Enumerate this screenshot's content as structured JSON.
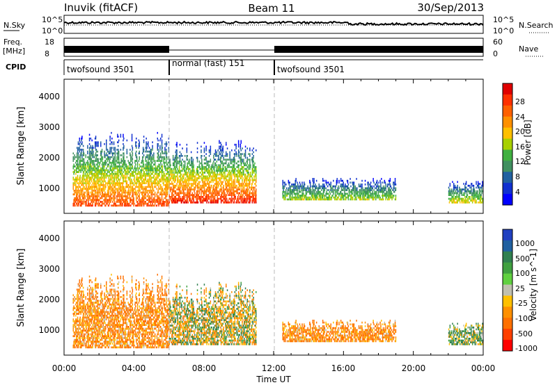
{
  "header": {
    "station": "Inuvik (fitACF)",
    "beam": "Beam 11",
    "date": "30/Sep/2013"
  },
  "noise_panel": {
    "left_label": "N.Sky",
    "right_label": "N.Search",
    "ticks": [
      "10^5",
      "10^0"
    ],
    "right_ticks": [
      "10^5",
      "10^0"
    ]
  },
  "freq_panel": {
    "left_label_1": "Freq.",
    "left_label_2": "[MHz]",
    "ticks": [
      "18",
      "8"
    ],
    "right_label": "Nave",
    "right_ticks": [
      "60",
      "0"
    ]
  },
  "cpid_panel": {
    "label": "CPID",
    "modes": [
      {
        "name": "twofsound 3501",
        "start": 0,
        "end": 6
      },
      {
        "name": "normal (fast) 151",
        "start": 6,
        "end": 12
      },
      {
        "name": "twofsound 3501",
        "start": 12,
        "end": 24
      }
    ]
  },
  "x_axis": {
    "label": "Time UT",
    "ticks": [
      "00:00",
      "04:00",
      "08:00",
      "12:00",
      "16:00",
      "20:00",
      "00:00"
    ],
    "range_hours": [
      0,
      24
    ]
  },
  "power_panel": {
    "ylabel": "Slant Range [km]",
    "yticks": [
      "1000",
      "2000",
      "3000",
      "4000"
    ],
    "cbar_label": "Power [dB]",
    "cbar_ticks": [
      "28",
      "24",
      "20",
      "16",
      "12",
      "8",
      "4"
    ],
    "cbar_colors": [
      "#e00000",
      "#ff3000",
      "#ff6000",
      "#ff9000",
      "#ffc000",
      "#a8d000",
      "#40b040",
      "#409060",
      "#2060a0",
      "#1030d0",
      "#0000ff"
    ]
  },
  "velocity_panel": {
    "ylabel": "Slant Range [km]",
    "yticks": [
      "1000",
      "2000",
      "3000",
      "4000"
    ],
    "cbar_label": "Velocity [m s^-1]",
    "cbar_ticks": [
      "1000",
      "500",
      "100",
      "25",
      "-25",
      "-100",
      "-500",
      "-1000"
    ],
    "cbar_colors": [
      "#2040c0",
      "#2060a0",
      "#308050",
      "#40a040",
      "#60d040",
      "#c0c0b0",
      "#ffc000",
      "#ff9000",
      "#ff7000",
      "#ff4000",
      "#ff0000"
    ]
  },
  "chart_data": {
    "type": "heatmap",
    "title": "Inuvik (fitACF) Beam 11 30/Sep/2013",
    "xlabel": "Time UT",
    "ylabel": "Slant Range [km]",
    "xlim_hours": [
      0,
      24
    ],
    "ylim_km": [
      180,
      4500
    ],
    "mode_boundaries_hours": [
      6,
      12
    ],
    "echo_regions": [
      {
        "t_start": 0.5,
        "t_end": 6,
        "r_min": 400,
        "r_max": 2800,
        "power_db": 24,
        "velocity": -100
      },
      {
        "t_start": 6,
        "t_end": 11,
        "r_min": 500,
        "r_max": 2500,
        "power_db": 26,
        "velocity": 25
      },
      {
        "t_start": 12.5,
        "t_end": 19,
        "r_min": 600,
        "r_max": 1300,
        "power_db": 14,
        "velocity": -100
      },
      {
        "t_start": 22,
        "t_end": 24,
        "r_min": 500,
        "r_max": 1200,
        "power_db": 16,
        "velocity": 100
      }
    ]
  }
}
